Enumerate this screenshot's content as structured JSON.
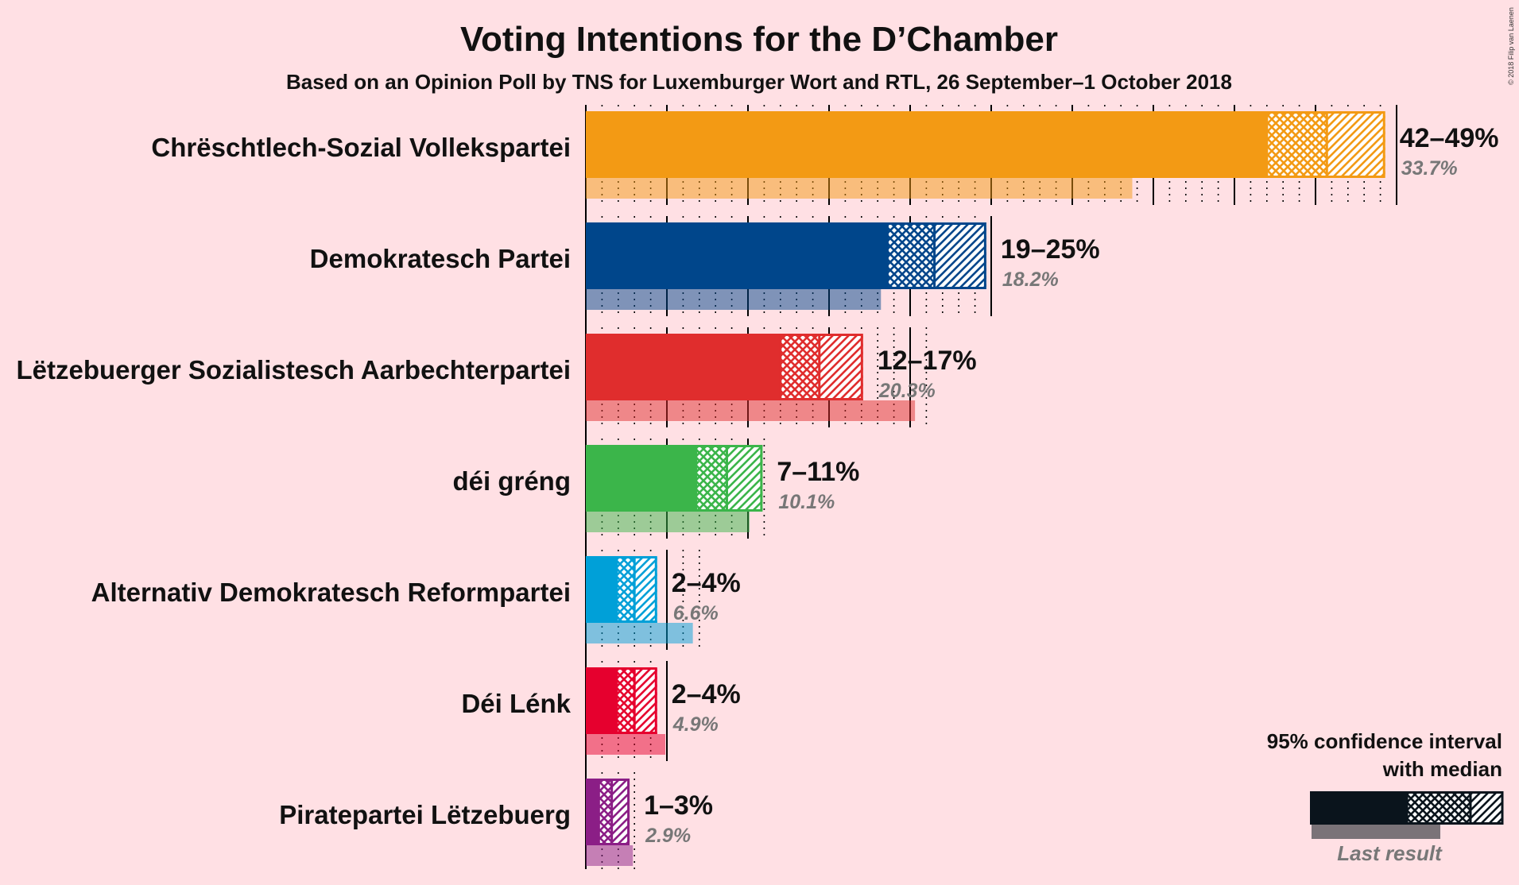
{
  "copyright": "© 2018 Filip van Laenen",
  "chart_data": {
    "type": "bar",
    "orientation": "horizontal",
    "title": "Voting Intentions for the D’Chamber",
    "subtitle": "Based on an Opinion Poll by TNS for Luxemburger Wort and RTL, 26 September–1 October 2018",
    "xlim": [
      0,
      50
    ],
    "series_names": [
      "95% confidence interval",
      "median",
      "Last result"
    ],
    "parties": [
      {
        "name": "Chrëschtlech-Sozial Vollekspartei",
        "color": "#F39A14",
        "ci_low": 42,
        "median": 45.7,
        "ci_high": 49.3,
        "range_label": "42–49%",
        "last": 33.7,
        "last_label": "33.7%"
      },
      {
        "name": "Demokratesch Partei",
        "color": "#00468B",
        "ci_low": 18.6,
        "median": 21.5,
        "ci_high": 24.7,
        "range_label": "19–25%",
        "last": 18.2,
        "last_label": "18.2%"
      },
      {
        "name": "Lëtzebuerger Sozialistesch Aarbechterpartei",
        "color": "#E02D2D",
        "ci_low": 12,
        "median": 14.4,
        "ci_high": 17.1,
        "range_label": "12–17%",
        "last": 20.3,
        "last_label": "20.3%"
      },
      {
        "name": "déi gréng",
        "color": "#3BB54A",
        "ci_low": 6.8,
        "median": 8.7,
        "ci_high": 10.9,
        "range_label": "7–11%",
        "last": 10.1,
        "last_label": "10.1%"
      },
      {
        "name": "Alternativ Demokratesch Reformpartei",
        "color": "#00A0D8",
        "ci_low": 1.9,
        "median": 3.0,
        "ci_high": 4.4,
        "range_label": "2–4%",
        "last": 6.6,
        "last_label": "6.6%"
      },
      {
        "name": "Déi Lénk",
        "color": "#E6002E",
        "ci_low": 1.9,
        "median": 3.0,
        "ci_high": 4.4,
        "range_label": "2–4%",
        "last": 4.9,
        "last_label": "4.9%"
      },
      {
        "name": "Piratepartei Lëtzebuerg",
        "color": "#8B1E86",
        "ci_low": 0.8,
        "median": 1.6,
        "ci_high": 2.7,
        "range_label": "1–3%",
        "last": 2.9,
        "last_label": "2.9%"
      }
    ],
    "legend": {
      "line1": "95% confidence interval",
      "line2": "with median",
      "last_result": "Last result",
      "color": "#0A141C",
      "placement": "bottom-right"
    }
  }
}
